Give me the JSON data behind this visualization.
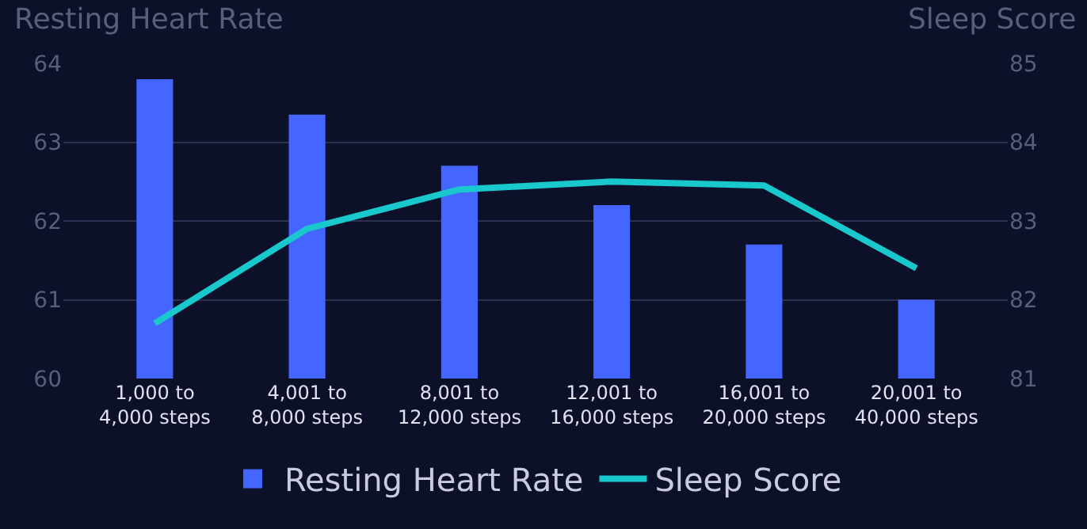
{
  "chart_data": {
    "type": "bar",
    "categories": [
      "1,000 to\n4,000 steps",
      "4,001 to\n8,000 steps",
      "8,001 to\n12,000 steps",
      "12,001 to\n16,000 steps",
      "16,001 to\n20,000 steps",
      "20,001 to\n40,000 steps"
    ],
    "ylabel": "Resting Heart Rate",
    "y2label": "Sleep Score",
    "series": [
      {
        "name": "Resting Heart Rate",
        "color": "#4466ff",
        "values": [
          63.8,
          63.35,
          62.7,
          62.2,
          61.7,
          61.0
        ]
      },
      {
        "name": "Sleep Score",
        "type": "line",
        "axis": "y2",
        "color": "#18c8cc",
        "values": [
          81.7,
          82.9,
          83.4,
          83.5,
          83.45,
          82.4
        ]
      }
    ],
    "ylim": [
      60,
      64
    ],
    "yticks": [
      60,
      61,
      62,
      63,
      64
    ],
    "y2lim": [
      81,
      85
    ],
    "y2ticks": [
      81,
      82,
      83,
      84,
      85
    ],
    "grid": "y",
    "legend": "bottom",
    "marker": "none",
    "line_style": "solid"
  }
}
